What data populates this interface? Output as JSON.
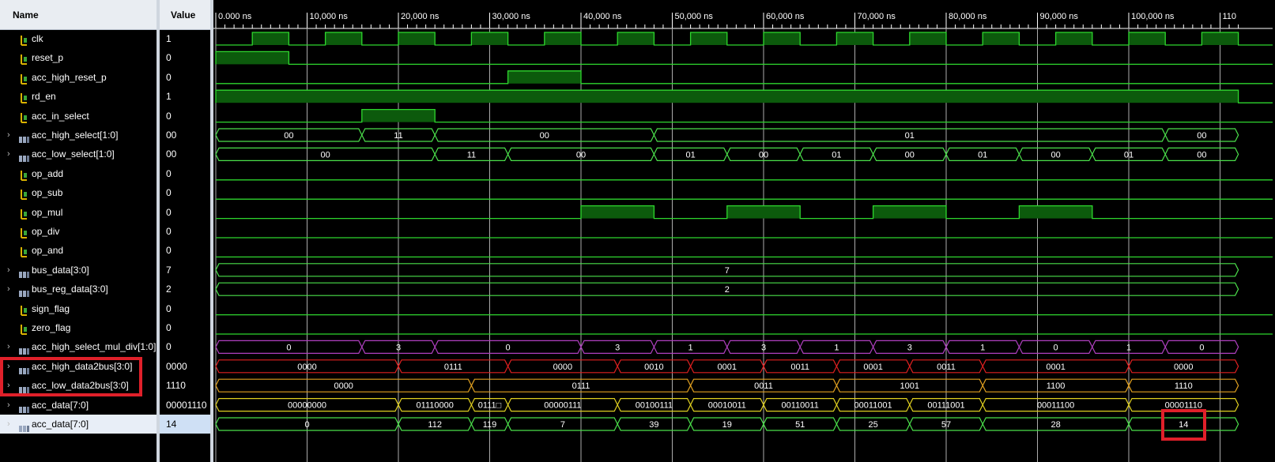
{
  "header": {
    "name": "Name",
    "value": "Value"
  },
  "signals": [
    {
      "name": "clk",
      "value": "1",
      "type": "bit"
    },
    {
      "name": "reset_p",
      "value": "0",
      "type": "bit"
    },
    {
      "name": "acc_high_reset_p",
      "value": "0",
      "type": "bit"
    },
    {
      "name": "rd_en",
      "value": "1",
      "type": "bit"
    },
    {
      "name": "acc_in_select",
      "value": "0",
      "type": "bit"
    },
    {
      "name": "acc_high_select[1:0]",
      "value": "00",
      "type": "bus"
    },
    {
      "name": "acc_low_select[1:0]",
      "value": "00",
      "type": "bus"
    },
    {
      "name": "op_add",
      "value": "0",
      "type": "bit"
    },
    {
      "name": "op_sub",
      "value": "0",
      "type": "bit"
    },
    {
      "name": "op_mul",
      "value": "0",
      "type": "bit"
    },
    {
      "name": "op_div",
      "value": "0",
      "type": "bit"
    },
    {
      "name": "op_and",
      "value": "0",
      "type": "bit"
    },
    {
      "name": "bus_data[3:0]",
      "value": "7",
      "type": "bus"
    },
    {
      "name": "bus_reg_data[3:0]",
      "value": "2",
      "type": "bus"
    },
    {
      "name": "sign_flag",
      "value": "0",
      "type": "bit"
    },
    {
      "name": "zero_flag",
      "value": "0",
      "type": "bit"
    },
    {
      "name": "acc_high_select_mul_div[1:0]",
      "value": "0",
      "type": "bus"
    },
    {
      "name": "acc_high_data2bus[3:0]",
      "value": "0000",
      "type": "bus"
    },
    {
      "name": "acc_low_data2bus[3:0]",
      "value": "1110",
      "type": "bus"
    },
    {
      "name": "acc_data[7:0]",
      "value": "00001110",
      "type": "bus"
    },
    {
      "name": "acc_data[7:0]",
      "value": "14",
      "type": "bus",
      "selected": true
    }
  ],
  "timeline": {
    "unit": "ns",
    "labels": [
      "0.000 ns",
      "10,000 ns",
      "20,000 ns",
      "30,000 ns",
      "40,000 ns",
      "50,000 ns",
      "60,000 ns",
      "70,000 ns",
      "80,000 ns",
      "90,000 ns",
      "100,000 ns",
      "110"
    ]
  },
  "waveforms": {
    "clk": {
      "kind": "clock",
      "period_ns": 8000,
      "high_start_ns": 4000
    },
    "reset_p": {
      "kind": "bit",
      "high": [
        [
          0,
          8000
        ]
      ]
    },
    "acc_high_reset_p": {
      "kind": "bit",
      "high": [
        [
          32000,
          40000
        ]
      ]
    },
    "rd_en": {
      "kind": "bit",
      "high": [
        [
          0,
          112000
        ]
      ]
    },
    "acc_in_select": {
      "kind": "bit",
      "high": [
        [
          16000,
          24000
        ]
      ]
    },
    "acc_high_select": {
      "kind": "bus",
      "color": "#4be04b",
      "segments": [
        [
          0,
          16000,
          "00"
        ],
        [
          16000,
          24000,
          "11"
        ],
        [
          24000,
          48000,
          "00"
        ],
        [
          48000,
          104000,
          "01"
        ],
        [
          104000,
          112000,
          "00"
        ]
      ]
    },
    "acc_low_select": {
      "kind": "bus",
      "color": "#4be04b",
      "segments": [
        [
          0,
          24000,
          "00"
        ],
        [
          24000,
          32000,
          "11"
        ],
        [
          32000,
          48000,
          "00"
        ],
        [
          48000,
          56000,
          "01"
        ],
        [
          56000,
          64000,
          "00"
        ],
        [
          64000,
          72000,
          "01"
        ],
        [
          72000,
          80000,
          "00"
        ],
        [
          80000,
          88000,
          "01"
        ],
        [
          88000,
          96000,
          "00"
        ],
        [
          96000,
          104000,
          "01"
        ],
        [
          104000,
          112000,
          "00"
        ]
      ]
    },
    "op_mul": {
      "kind": "bit",
      "high": [
        [
          40000,
          48000
        ],
        [
          56000,
          64000
        ],
        [
          72000,
          80000
        ],
        [
          88000,
          96000
        ]
      ]
    },
    "bus_data": {
      "kind": "bus",
      "color": "#4be04b",
      "segments": [
        [
          0,
          112000,
          "7"
        ]
      ]
    },
    "bus_reg_data": {
      "kind": "bus",
      "color": "#4be04b",
      "segments": [
        [
          0,
          112000,
          "2"
        ]
      ]
    },
    "acc_high_select_mul_div": {
      "kind": "bus",
      "color": "#b040c0",
      "segments": [
        [
          0,
          16000,
          "0"
        ],
        [
          16000,
          24000,
          "3"
        ],
        [
          24000,
          40000,
          "0"
        ],
        [
          40000,
          48000,
          "3"
        ],
        [
          48000,
          56000,
          "1"
        ],
        [
          56000,
          64000,
          "3"
        ],
        [
          64000,
          72000,
          "1"
        ],
        [
          72000,
          80000,
          "3"
        ],
        [
          80000,
          88000,
          "1"
        ],
        [
          88000,
          96000,
          "0"
        ],
        [
          96000,
          104000,
          "1"
        ],
        [
          104000,
          112000,
          "0"
        ]
      ]
    },
    "acc_high_data2bus": {
      "kind": "bus",
      "color": "#e02020",
      "segments": [
        [
          0,
          20000,
          "0000"
        ],
        [
          20000,
          32000,
          "0111"
        ],
        [
          32000,
          44000,
          "0000"
        ],
        [
          44000,
          52000,
          "0010"
        ],
        [
          52000,
          60000,
          "0001"
        ],
        [
          60000,
          68000,
          "0011"
        ],
        [
          68000,
          76000,
          "0001"
        ],
        [
          76000,
          84000,
          "0011"
        ],
        [
          84000,
          100000,
          "0001"
        ],
        [
          100000,
          112000,
          "0000"
        ]
      ]
    },
    "acc_low_data2bus": {
      "kind": "bus",
      "color": "#e0a020",
      "segments": [
        [
          0,
          28000,
          "0000"
        ],
        [
          28000,
          52000,
          "0111"
        ],
        [
          52000,
          68000,
          "0011"
        ],
        [
          68000,
          84000,
          "1001"
        ],
        [
          84000,
          100000,
          "1100"
        ],
        [
          100000,
          112000,
          "1110"
        ]
      ]
    },
    "acc_data_bin": {
      "kind": "bus",
      "color": "#e0d020",
      "segments": [
        [
          0,
          20000,
          "00000000"
        ],
        [
          20000,
          28000,
          "01110000"
        ],
        [
          28000,
          32000,
          "0111□"
        ],
        [
          32000,
          44000,
          "00000111"
        ],
        [
          44000,
          52000,
          "00100111"
        ],
        [
          52000,
          60000,
          "00010011"
        ],
        [
          60000,
          68000,
          "00110011"
        ],
        [
          68000,
          76000,
          "00011001"
        ],
        [
          76000,
          84000,
          "00111001"
        ],
        [
          84000,
          100000,
          "00011100"
        ],
        [
          100000,
          112000,
          "00001110"
        ]
      ]
    },
    "acc_data_dec": {
      "kind": "bus",
      "color": "#4be04b",
      "segments": [
        [
          0,
          20000,
          "0"
        ],
        [
          20000,
          28000,
          "112"
        ],
        [
          28000,
          32000,
          "119"
        ],
        [
          32000,
          44000,
          "7"
        ],
        [
          44000,
          52000,
          "39"
        ],
        [
          52000,
          60000,
          "19"
        ],
        [
          60000,
          68000,
          "51"
        ],
        [
          68000,
          76000,
          "25"
        ],
        [
          76000,
          84000,
          "57"
        ],
        [
          84000,
          100000,
          "28"
        ],
        [
          100000,
          112000,
          "14"
        ]
      ]
    }
  },
  "colors": {
    "trace": "#2ed62e",
    "fill": "#0c5a0c",
    "grid": "#ffffff",
    "axis": "#ffffff",
    "highlight": "#e0202a"
  }
}
